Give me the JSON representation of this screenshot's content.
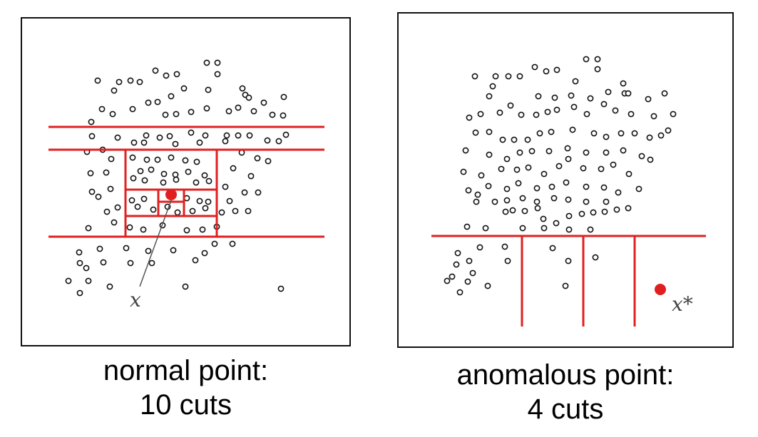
{
  "panels": [
    {
      "caption_line1": "normal point:",
      "caption_line2": "10 cuts",
      "point_label": "x"
    },
    {
      "caption_line1": "anomalous point:",
      "caption_line2": "4 cuts",
      "point_label": "x*"
    }
  ],
  "colors": {
    "cut": "#e02020",
    "highlight_point": "#e02020",
    "data_point": "#111111"
  },
  "icons": {
    "data_point": "hollow-circle",
    "isolated_point": "filled-red-circle"
  }
}
